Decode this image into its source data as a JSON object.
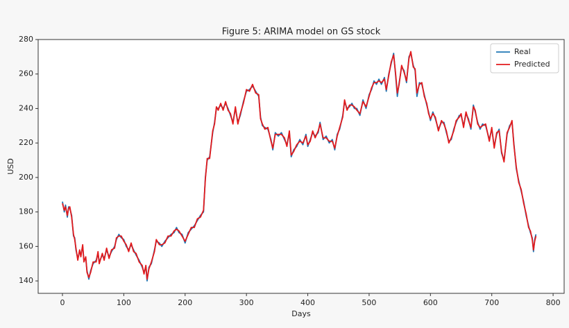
{
  "chart_data": {
    "type": "line",
    "title": "Figure 5: ARIMA model on GS stock",
    "xlabel": "Days",
    "ylabel": "USD",
    "x": [
      0,
      3,
      5,
      8,
      10,
      12,
      15,
      18,
      20,
      22,
      25,
      28,
      30,
      33,
      35,
      38,
      40,
      43,
      46,
      50,
      55,
      58,
      60,
      65,
      68,
      72,
      76,
      80,
      85,
      88,
      92,
      96,
      100,
      104,
      108,
      112,
      116,
      120,
      125,
      130,
      133,
      136,
      138,
      141,
      145,
      150,
      153,
      158,
      162,
      167,
      172,
      177,
      182,
      186,
      190,
      195,
      200,
      205,
      210,
      215,
      220,
      225,
      230,
      233,
      236,
      240,
      245,
      248,
      251,
      254,
      258,
      262,
      266,
      270,
      274,
      278,
      282,
      286,
      290,
      295,
      300,
      305,
      310,
      315,
      320,
      323,
      326,
      330,
      335,
      340,
      343,
      347,
      352,
      357,
      362,
      366,
      370,
      373,
      377,
      382,
      387,
      392,
      397,
      400,
      404,
      408,
      412,
      417,
      420,
      425,
      430,
      435,
      440,
      444,
      448,
      452,
      457,
      460,
      464,
      468,
      472,
      476,
      480,
      485,
      490,
      495,
      500,
      504,
      508,
      512,
      516,
      520,
      525,
      528,
      532,
      536,
      540,
      543,
      546,
      549,
      553,
      557,
      561,
      565,
      568,
      572,
      575,
      578,
      582,
      586,
      590,
      594,
      597,
      600,
      604,
      608,
      613,
      618,
      622,
      626,
      630,
      634,
      638,
      642,
      647,
      650,
      654,
      658,
      662,
      666,
      670,
      673,
      677,
      681,
      685,
      690,
      696,
      700,
      704,
      708,
      712,
      716,
      720,
      725,
      729,
      733,
      736,
      740,
      744,
      748,
      752,
      756,
      760,
      763,
      766,
      768,
      770,
      772
    ],
    "series": [
      {
        "name": "Real",
        "color": "#1f77b4",
        "values": [
          186,
          180,
          184,
          177,
          183,
          182,
          178,
          166,
          165,
          158,
          153,
          157,
          155,
          160,
          152,
          153,
          146,
          141,
          146,
          150,
          152,
          156,
          151,
          155,
          153,
          158,
          154,
          157,
          160,
          164,
          167,
          165,
          164,
          160,
          158,
          161,
          158,
          155,
          152,
          148,
          145,
          148,
          140,
          148,
          150,
          158,
          163,
          162,
          160,
          163,
          165,
          167,
          168,
          171,
          168,
          167,
          162,
          168,
          170,
          172,
          175,
          178,
          180,
          200,
          210,
          212,
          226,
          232,
          240,
          240,
          242,
          240,
          243,
          240,
          236,
          232,
          240,
          232,
          236,
          244,
          250,
          251,
          253,
          250,
          247,
          235,
          230,
          229,
          228,
          222,
          216,
          226,
          224,
          226,
          222,
          219,
          226,
          212,
          216,
          218,
          222,
          219,
          225,
          218,
          222,
          226,
          224,
          226,
          232,
          222,
          224,
          220,
          222,
          216,
          225,
          228,
          236,
          244,
          240,
          241,
          243,
          240,
          240,
          236,
          245,
          240,
          248,
          251,
          256,
          254,
          257,
          254,
          258,
          250,
          260,
          266,
          272,
          260,
          247,
          255,
          264,
          262,
          255,
          270,
          272,
          265,
          262,
          247,
          255,
          254,
          248,
          242,
          238,
          233,
          238,
          234,
          228,
          232,
          232,
          226,
          221,
          222,
          228,
          232,
          236,
          236,
          230,
          237,
          234,
          228,
          242,
          238,
          232,
          228,
          231,
          230,
          222,
          228,
          218,
          225,
          228,
          214,
          210,
          225,
          230,
          232,
          220,
          205,
          198,
          192,
          186,
          178,
          172,
          168,
          165,
          157,
          164,
          167
        ]
      },
      {
        "name": "Predicted",
        "color": "#e31a1c",
        "values": [
          185,
          181,
          183,
          178,
          182,
          183,
          177,
          167,
          164,
          159,
          152,
          158,
          154,
          161,
          151,
          154,
          145,
          142,
          145,
          151,
          151,
          157,
          150,
          156,
          152,
          159,
          153,
          158,
          159,
          165,
          166,
          166,
          163,
          161,
          157,
          162,
          157,
          156,
          151,
          149,
          144,
          149,
          141,
          147,
          151,
          157,
          164,
          161,
          161,
          162,
          166,
          166,
          169,
          170,
          169,
          166,
          163,
          167,
          171,
          171,
          176,
          177,
          181,
          199,
          211,
          211,
          227,
          231,
          241,
          239,
          243,
          239,
          244,
          239,
          237,
          231,
          241,
          231,
          237,
          243,
          251,
          250,
          254,
          249,
          248,
          234,
          231,
          228,
          229,
          221,
          217,
          225,
          225,
          225,
          223,
          218,
          227,
          213,
          215,
          219,
          221,
          220,
          224,
          219,
          221,
          227,
          223,
          227,
          231,
          223,
          223,
          221,
          221,
          217,
          224,
          229,
          235,
          245,
          239,
          242,
          242,
          241,
          239,
          237,
          244,
          241,
          247,
          252,
          255,
          255,
          256,
          255,
          257,
          251,
          259,
          267,
          271,
          261,
          249,
          254,
          265,
          261,
          256,
          269,
          273,
          264,
          263,
          249,
          254,
          255,
          247,
          243,
          237,
          234,
          237,
          235,
          227,
          233,
          231,
          227,
          220,
          223,
          227,
          233,
          235,
          237,
          229,
          238,
          233,
          229,
          241,
          239,
          231,
          229,
          230,
          231,
          221,
          229,
          217,
          226,
          227,
          215,
          209,
          226,
          229,
          233,
          219,
          206,
          197,
          193,
          185,
          179,
          171,
          169,
          164,
          158,
          163,
          166
        ]
      }
    ],
    "xlim": [
      -39.6,
      818
    ],
    "ylim": [
      132.8,
      280
    ],
    "xticks": [
      0,
      100,
      200,
      300,
      400,
      500,
      600,
      700,
      800
    ],
    "yticks": [
      140,
      160,
      180,
      200,
      220,
      240,
      260,
      280
    ],
    "legend": "upper right"
  }
}
